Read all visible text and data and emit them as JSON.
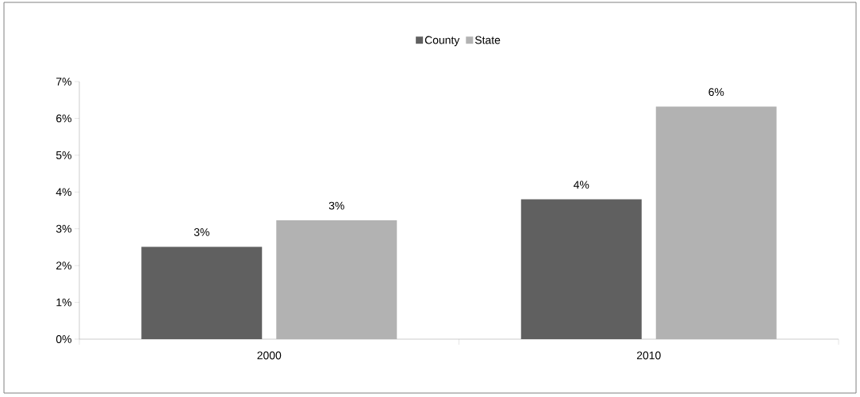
{
  "chart_data": {
    "type": "bar",
    "categories": [
      "2000",
      "2010"
    ],
    "series": [
      {
        "name": "County",
        "color": "#606060",
        "values": [
          2.51,
          3.8
        ],
        "value_labels": [
          "3%",
          "4%"
        ]
      },
      {
        "name": "State",
        "color": "#b2b2b2",
        "values": [
          3.23,
          6.32
        ],
        "value_labels": [
          "3%",
          "6%"
        ]
      }
    ],
    "ylim": [
      0,
      7
    ],
    "yticks": [
      {
        "value": 0,
        "label": "0%"
      },
      {
        "value": 1,
        "label": "1%"
      },
      {
        "value": 2,
        "label": "2%"
      },
      {
        "value": 3,
        "label": "3%"
      },
      {
        "value": 4,
        "label": "4%"
      },
      {
        "value": 5,
        "label": "5%"
      },
      {
        "value": 6,
        "label": "6%"
      },
      {
        "value": 7,
        "label": "7%"
      }
    ],
    "legend": "top",
    "grid": false
  }
}
